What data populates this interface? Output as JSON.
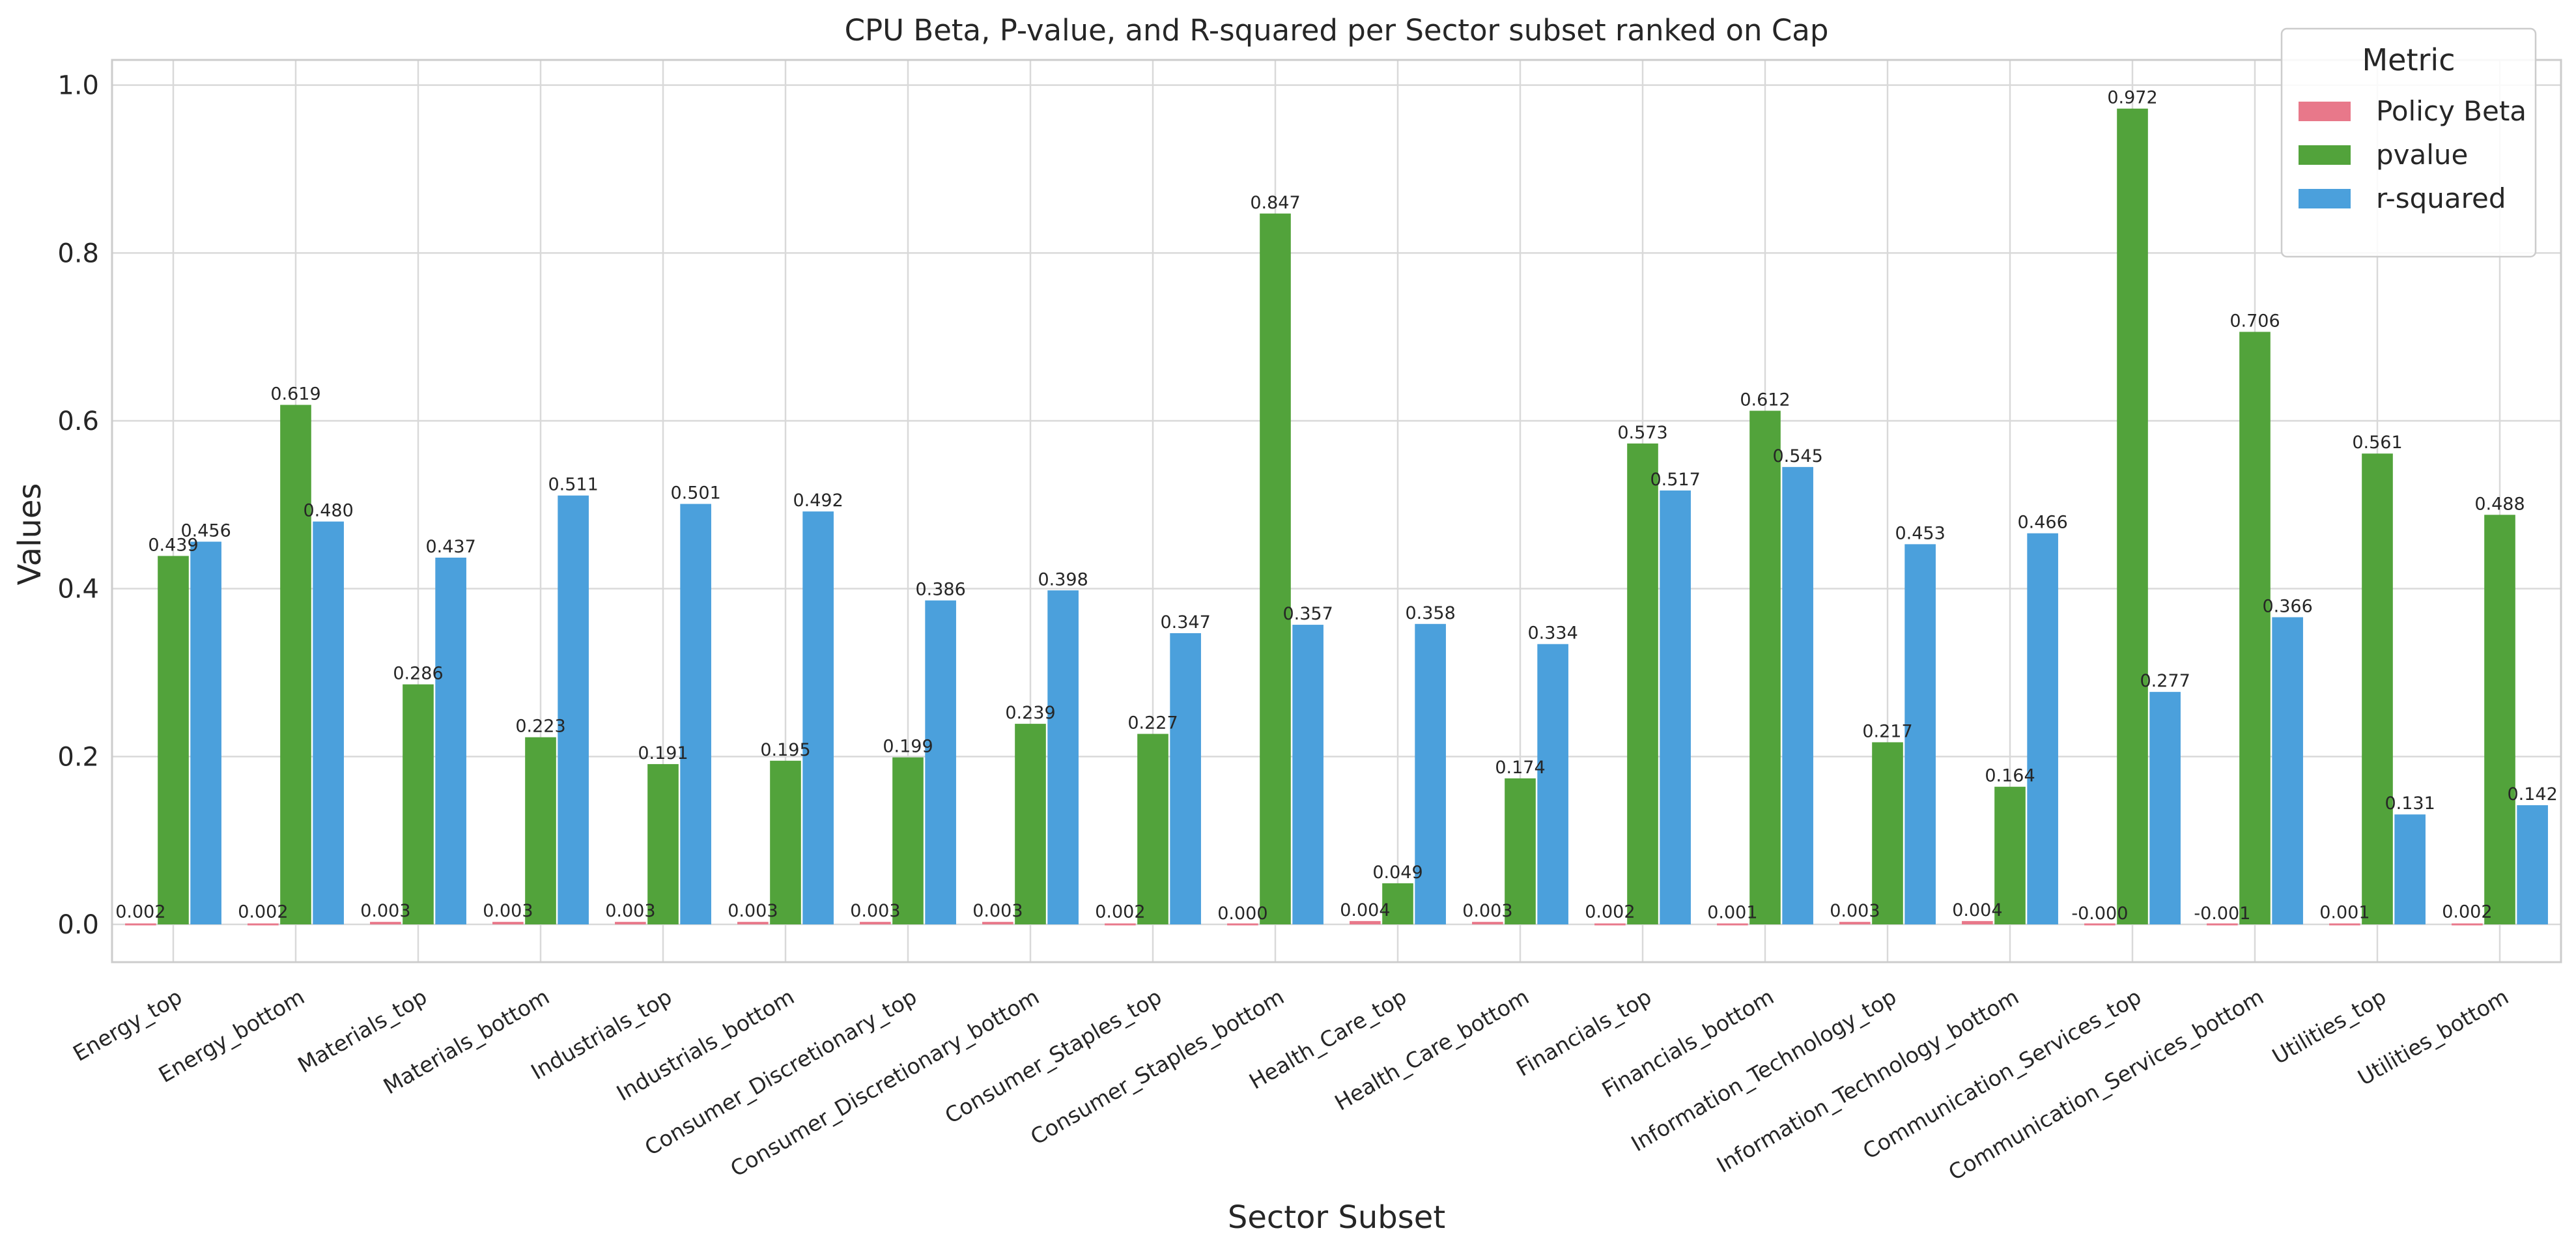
{
  "chart_data": {
    "type": "bar",
    "title": "CPU Beta, P-value, and R-squared per Sector subset ranked on Cap",
    "xlabel": "Sector Subset",
    "ylabel": "Values",
    "ylim": [
      -0.045,
      1.03
    ],
    "yticks": [
      0.0,
      0.2,
      0.4,
      0.6,
      0.8,
      1.0
    ],
    "grid": true,
    "legend": {
      "title": "Metric",
      "placement": "top-right"
    },
    "categories": [
      "Energy_top",
      "Energy_bottom",
      "Materials_top",
      "Materials_bottom",
      "Industrials_top",
      "Industrials_bottom",
      "Consumer_Discretionary_top",
      "Consumer_Discretionary_bottom",
      "Consumer_Staples_top",
      "Consumer_Staples_bottom",
      "Health_Care_top",
      "Health_Care_bottom",
      "Financials_top",
      "Financials_bottom",
      "Information_Technology_top",
      "Information_Technology_bottom",
      "Communication_Services_top",
      "Communication_Services_bottom",
      "Utilities_top",
      "Utilities_bottom"
    ],
    "series": [
      {
        "name": "Policy Beta",
        "color": "#e8788a",
        "values": [
          0.002,
          0.002,
          0.003,
          0.003,
          0.003,
          0.003,
          0.003,
          0.003,
          0.002,
          0.0,
          0.004,
          0.003,
          0.002,
          0.001,
          0.003,
          0.004,
          -0.0,
          -0.001,
          0.001,
          0.002
        ],
        "labels": [
          "0.002",
          "0.002",
          "0.003",
          "0.003",
          "0.003",
          "0.003",
          "0.003",
          "0.003",
          "0.002",
          "0.000",
          "0.004",
          "0.003",
          "0.002",
          "0.001",
          "0.003",
          "0.004",
          "-0.000",
          "-0.001",
          "0.001",
          "0.002"
        ]
      },
      {
        "name": "pvalue",
        "color": "#52a33b",
        "values": [
          0.439,
          0.619,
          0.286,
          0.223,
          0.191,
          0.195,
          0.199,
          0.239,
          0.227,
          0.847,
          0.049,
          0.174,
          0.573,
          0.612,
          0.217,
          0.164,
          0.972,
          0.706,
          0.561,
          0.488
        ],
        "labels": [
          "0.439",
          "0.619",
          "0.286",
          "0.223",
          "0.191",
          "0.195",
          "0.199",
          "0.239",
          "0.227",
          "0.847",
          "0.049",
          "0.174",
          "0.573",
          "0.612",
          "0.217",
          "0.164",
          "0.972",
          "0.706",
          "0.561",
          "0.488"
        ]
      },
      {
        "name": "r-squared",
        "color": "#4ba0dc",
        "values": [
          0.456,
          0.48,
          0.437,
          0.511,
          0.501,
          0.492,
          0.386,
          0.398,
          0.347,
          0.357,
          0.358,
          0.334,
          0.517,
          0.545,
          0.453,
          0.466,
          0.277,
          0.366,
          0.131,
          0.142
        ],
        "labels": [
          "0.456",
          "0.480",
          "0.437",
          "0.511",
          "0.501",
          "0.492",
          "0.386",
          "0.398",
          "0.347",
          "0.357",
          "0.358",
          "0.334",
          "0.517",
          "0.545",
          "0.453",
          "0.466",
          "0.277",
          "0.366",
          "0.131",
          "0.142"
        ]
      }
    ]
  }
}
